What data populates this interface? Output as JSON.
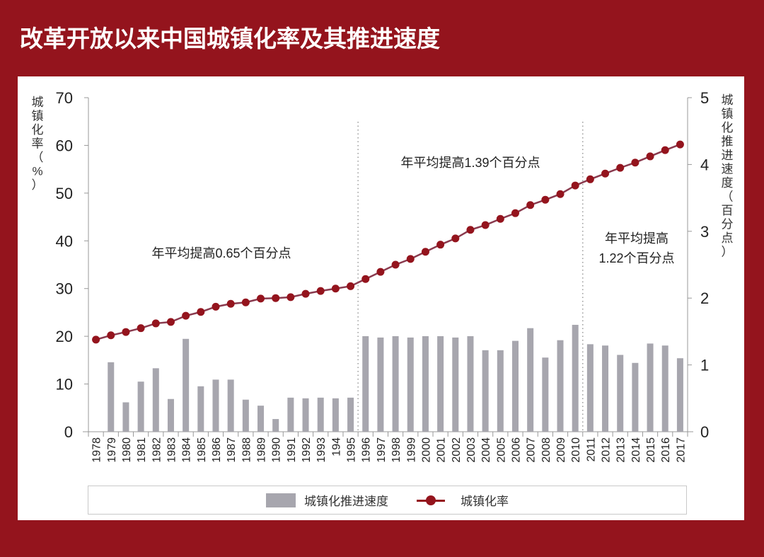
{
  "title": "改革开放以来中国城镇化率及其推进速度",
  "colors": {
    "background": "#94141d",
    "bar": "#a7a6ae",
    "line": "#8a3a4e",
    "marker": "#94141d",
    "divider": "#9a9a9a"
  },
  "left_axis": {
    "label": "城镇化率（%）",
    "label_chars": [
      "城",
      "镇",
      "化",
      "率",
      "（",
      "%",
      "）"
    ],
    "ticks": [
      "0",
      "10",
      "20",
      "30",
      "40",
      "50",
      "60",
      "70"
    ]
  },
  "right_axis": {
    "label": "城镇化推进速度（百分点）",
    "label_chars": [
      "城",
      "镇",
      "化",
      "推",
      "进",
      "速",
      "度",
      "（",
      "百",
      "分",
      "点",
      "）"
    ],
    "ticks": [
      "0",
      "1",
      "2",
      "3",
      "4",
      "5"
    ]
  },
  "annotations": [
    {
      "text": "年平均提高0.65个百分点"
    },
    {
      "text": "年平均提高1.39个百分点"
    },
    {
      "line1": "年平均提高",
      "line2": "1.22个百分点"
    }
  ],
  "legend": {
    "bar_label": "城镇化推进速度",
    "line_label": "城镇化率"
  },
  "chart_data": {
    "type": "bar+line",
    "title": "改革开放以来中国城镇化率及其推进速度",
    "xlabel": "",
    "ylabel": "城镇化率（%）",
    "y2label": "城镇化推进速度（百分点）",
    "ylim": [
      0,
      70
    ],
    "y2lim": [
      0,
      5
    ],
    "grid": false,
    "legend_position": "bottom",
    "categories": [
      "1978",
      "1979",
      "1980",
      "1981",
      "1982",
      "1983",
      "1984",
      "1985",
      "1986",
      "1987",
      "1988",
      "1989",
      "1990",
      "1991",
      "1992",
      "1993",
      "194",
      "1995",
      "1996",
      "1997",
      "1998",
      "1999",
      "2000",
      "2001",
      "2002",
      "2003",
      "2004",
      "2005",
      "2006",
      "2007",
      "2008",
      "2009",
      "2010",
      "2011",
      "2012",
      "2013",
      "2014",
      "2015",
      "2016",
      "2017"
    ],
    "series": [
      {
        "name": "城镇化推进速度",
        "type": "bar",
        "axis": "right",
        "values": [
          0,
          1.04,
          0.44,
          0.75,
          0.95,
          0.49,
          1.39,
          0.68,
          0.78,
          0.78,
          0.48,
          0.39,
          0.19,
          0.51,
          0.5,
          0.51,
          0.5,
          0.51,
          1.43,
          1.41,
          1.43,
          1.41,
          1.43,
          1.43,
          1.41,
          1.43,
          1.22,
          1.22,
          1.36,
          1.55,
          1.11,
          1.37,
          1.6,
          1.31,
          1.29,
          1.15,
          1.03,
          1.32,
          1.29,
          1.1
        ]
      },
      {
        "name": "城镇化率",
        "type": "line",
        "axis": "left",
        "values": [
          19.3,
          20.2,
          20.9,
          21.7,
          22.7,
          23.0,
          24.3,
          25.1,
          26.2,
          26.8,
          27.1,
          27.9,
          28.0,
          28.2,
          28.9,
          29.5,
          30.0,
          30.5,
          32.0,
          33.5,
          35.0,
          36.2,
          37.7,
          39.2,
          40.5,
          42.3,
          43.3,
          44.6,
          45.8,
          47.5,
          48.6,
          49.8,
          51.6,
          52.9,
          54.1,
          55.3,
          56.4,
          57.7,
          59.0,
          60.2
        ]
      }
    ],
    "period_dividers_after": [
      "1995",
      "2010"
    ],
    "annotations": [
      "年平均提高0.65个百分点",
      "年平均提高1.39个百分点",
      "年平均提高1.22个百分点"
    ]
  }
}
